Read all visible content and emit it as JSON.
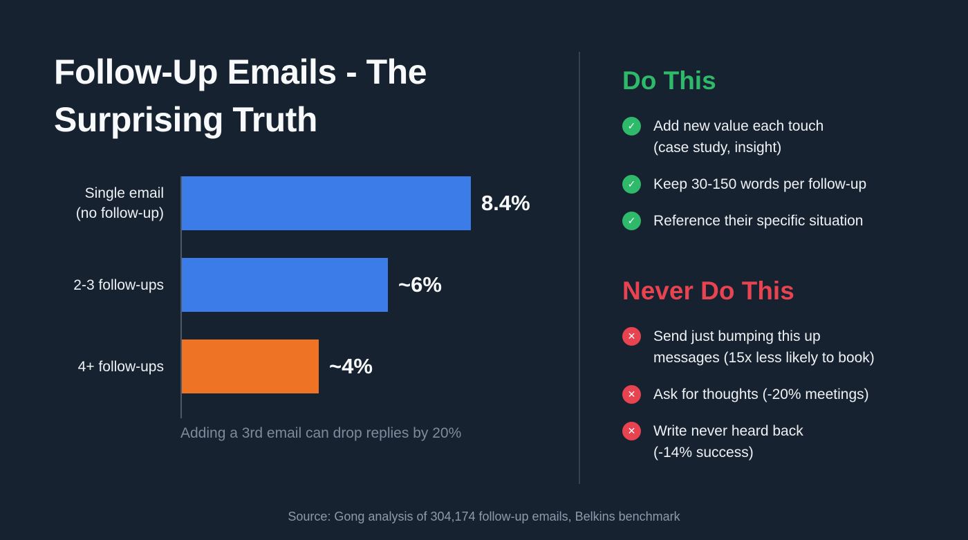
{
  "colors": {
    "background": "#16222f",
    "bar_blue": "#3b7ce8",
    "bar_orange": "#ee7324",
    "green": "#2fba6b",
    "red": "#e84350",
    "muted_text": "#7f8b9a"
  },
  "chart_data": {
    "type": "bar",
    "orientation": "horizontal",
    "title": "Follow-Up Emails - The\nSurprising Truth",
    "categories": [
      "Single email\n(no follow-up)",
      "2-3 follow-ups",
      "4+ follow-ups"
    ],
    "values": [
      8.4,
      6,
      4
    ],
    "value_labels": [
      "8.4%",
      "~6%",
      "~4%"
    ],
    "bar_colors": [
      "#3b7ce8",
      "#3b7ce8",
      "#ee7324"
    ],
    "xlim": [
      0,
      10
    ],
    "grid": false,
    "legend": false,
    "caption": "Adding a 3rd email can drop replies by 20%"
  },
  "do_section": {
    "heading": "Do This",
    "items": [
      "Add new value each touch\n(case study, insight)",
      "Keep 30-150 words per follow-up",
      "Reference their specific situation"
    ]
  },
  "dont_section": {
    "heading": "Never Do This",
    "items": [
      "Send just bumping this up\nmessages (15x less likely to book)",
      "Ask for thoughts (-20% meetings)",
      "Write never heard back\n(-14% success)"
    ]
  },
  "footer": {
    "source": "Source: Gong analysis of 304,174 follow-up emails, Belkins benchmark"
  }
}
